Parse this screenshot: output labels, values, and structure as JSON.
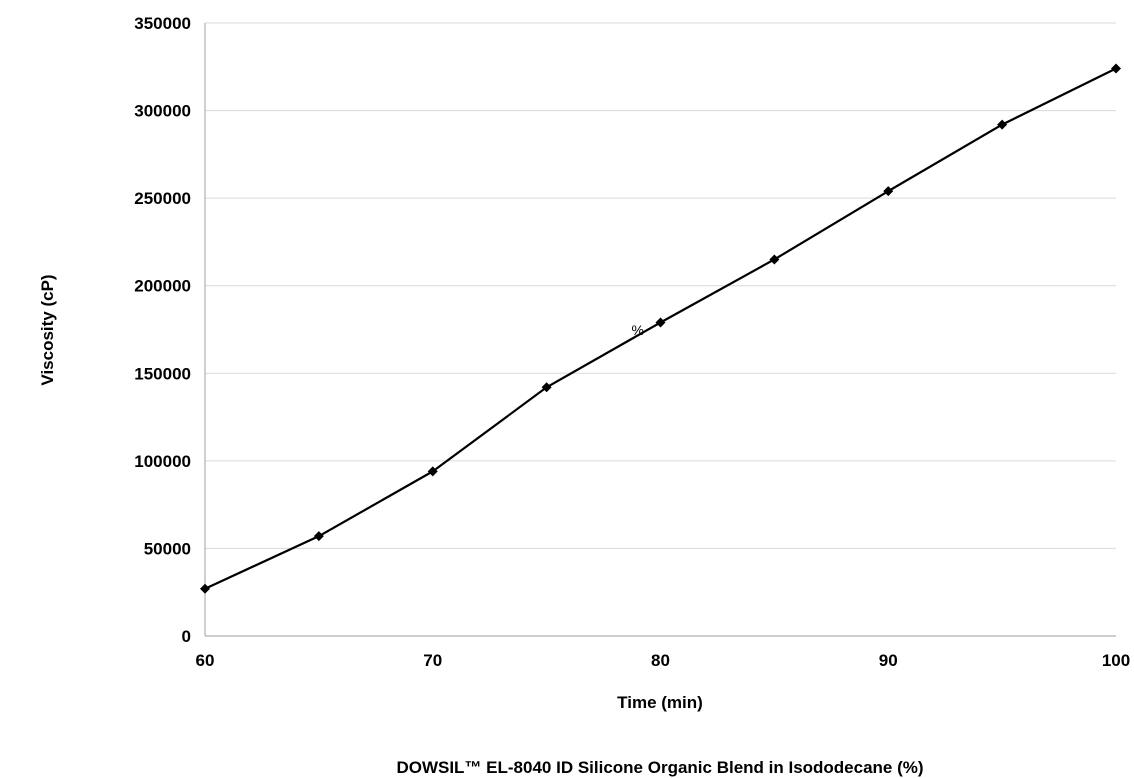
{
  "chart_data": {
    "type": "line",
    "title": "",
    "xlabel": "Time (min)",
    "ylabel": "Viscosity (cP)",
    "caption": "DOWSIL™ EL-8040 ID Silicone Organic Blend in Isododecane (%)",
    "x": [
      60,
      65,
      70,
      75,
      80,
      85,
      90,
      95,
      100
    ],
    "series": [
      {
        "values": [
          27000,
          57000,
          94000,
          142000,
          179000,
          215000,
          254000,
          292000,
          324000
        ],
        "marker": "diamond",
        "color": "#000000"
      }
    ],
    "xlim": [
      60,
      100
    ],
    "ylim": [
      0,
      350000
    ],
    "xticks": [
      "60",
      "70",
      "80",
      "90",
      "100"
    ],
    "yticks": [
      "0",
      "50000",
      "100000",
      "150000",
      "200000",
      "250000",
      "300000",
      "350000"
    ],
    "xtick_values": [
      60,
      70,
      80,
      90,
      100
    ],
    "ytick_values": [
      0,
      50000,
      100000,
      150000,
      200000,
      250000,
      300000,
      350000
    ],
    "annotations": [
      {
        "text": "%",
        "x": 79,
        "y": 172000
      }
    ],
    "grid": true,
    "grid_color": "#d9d9d9",
    "axis_color": "#b0b0b0",
    "legend": "none"
  }
}
